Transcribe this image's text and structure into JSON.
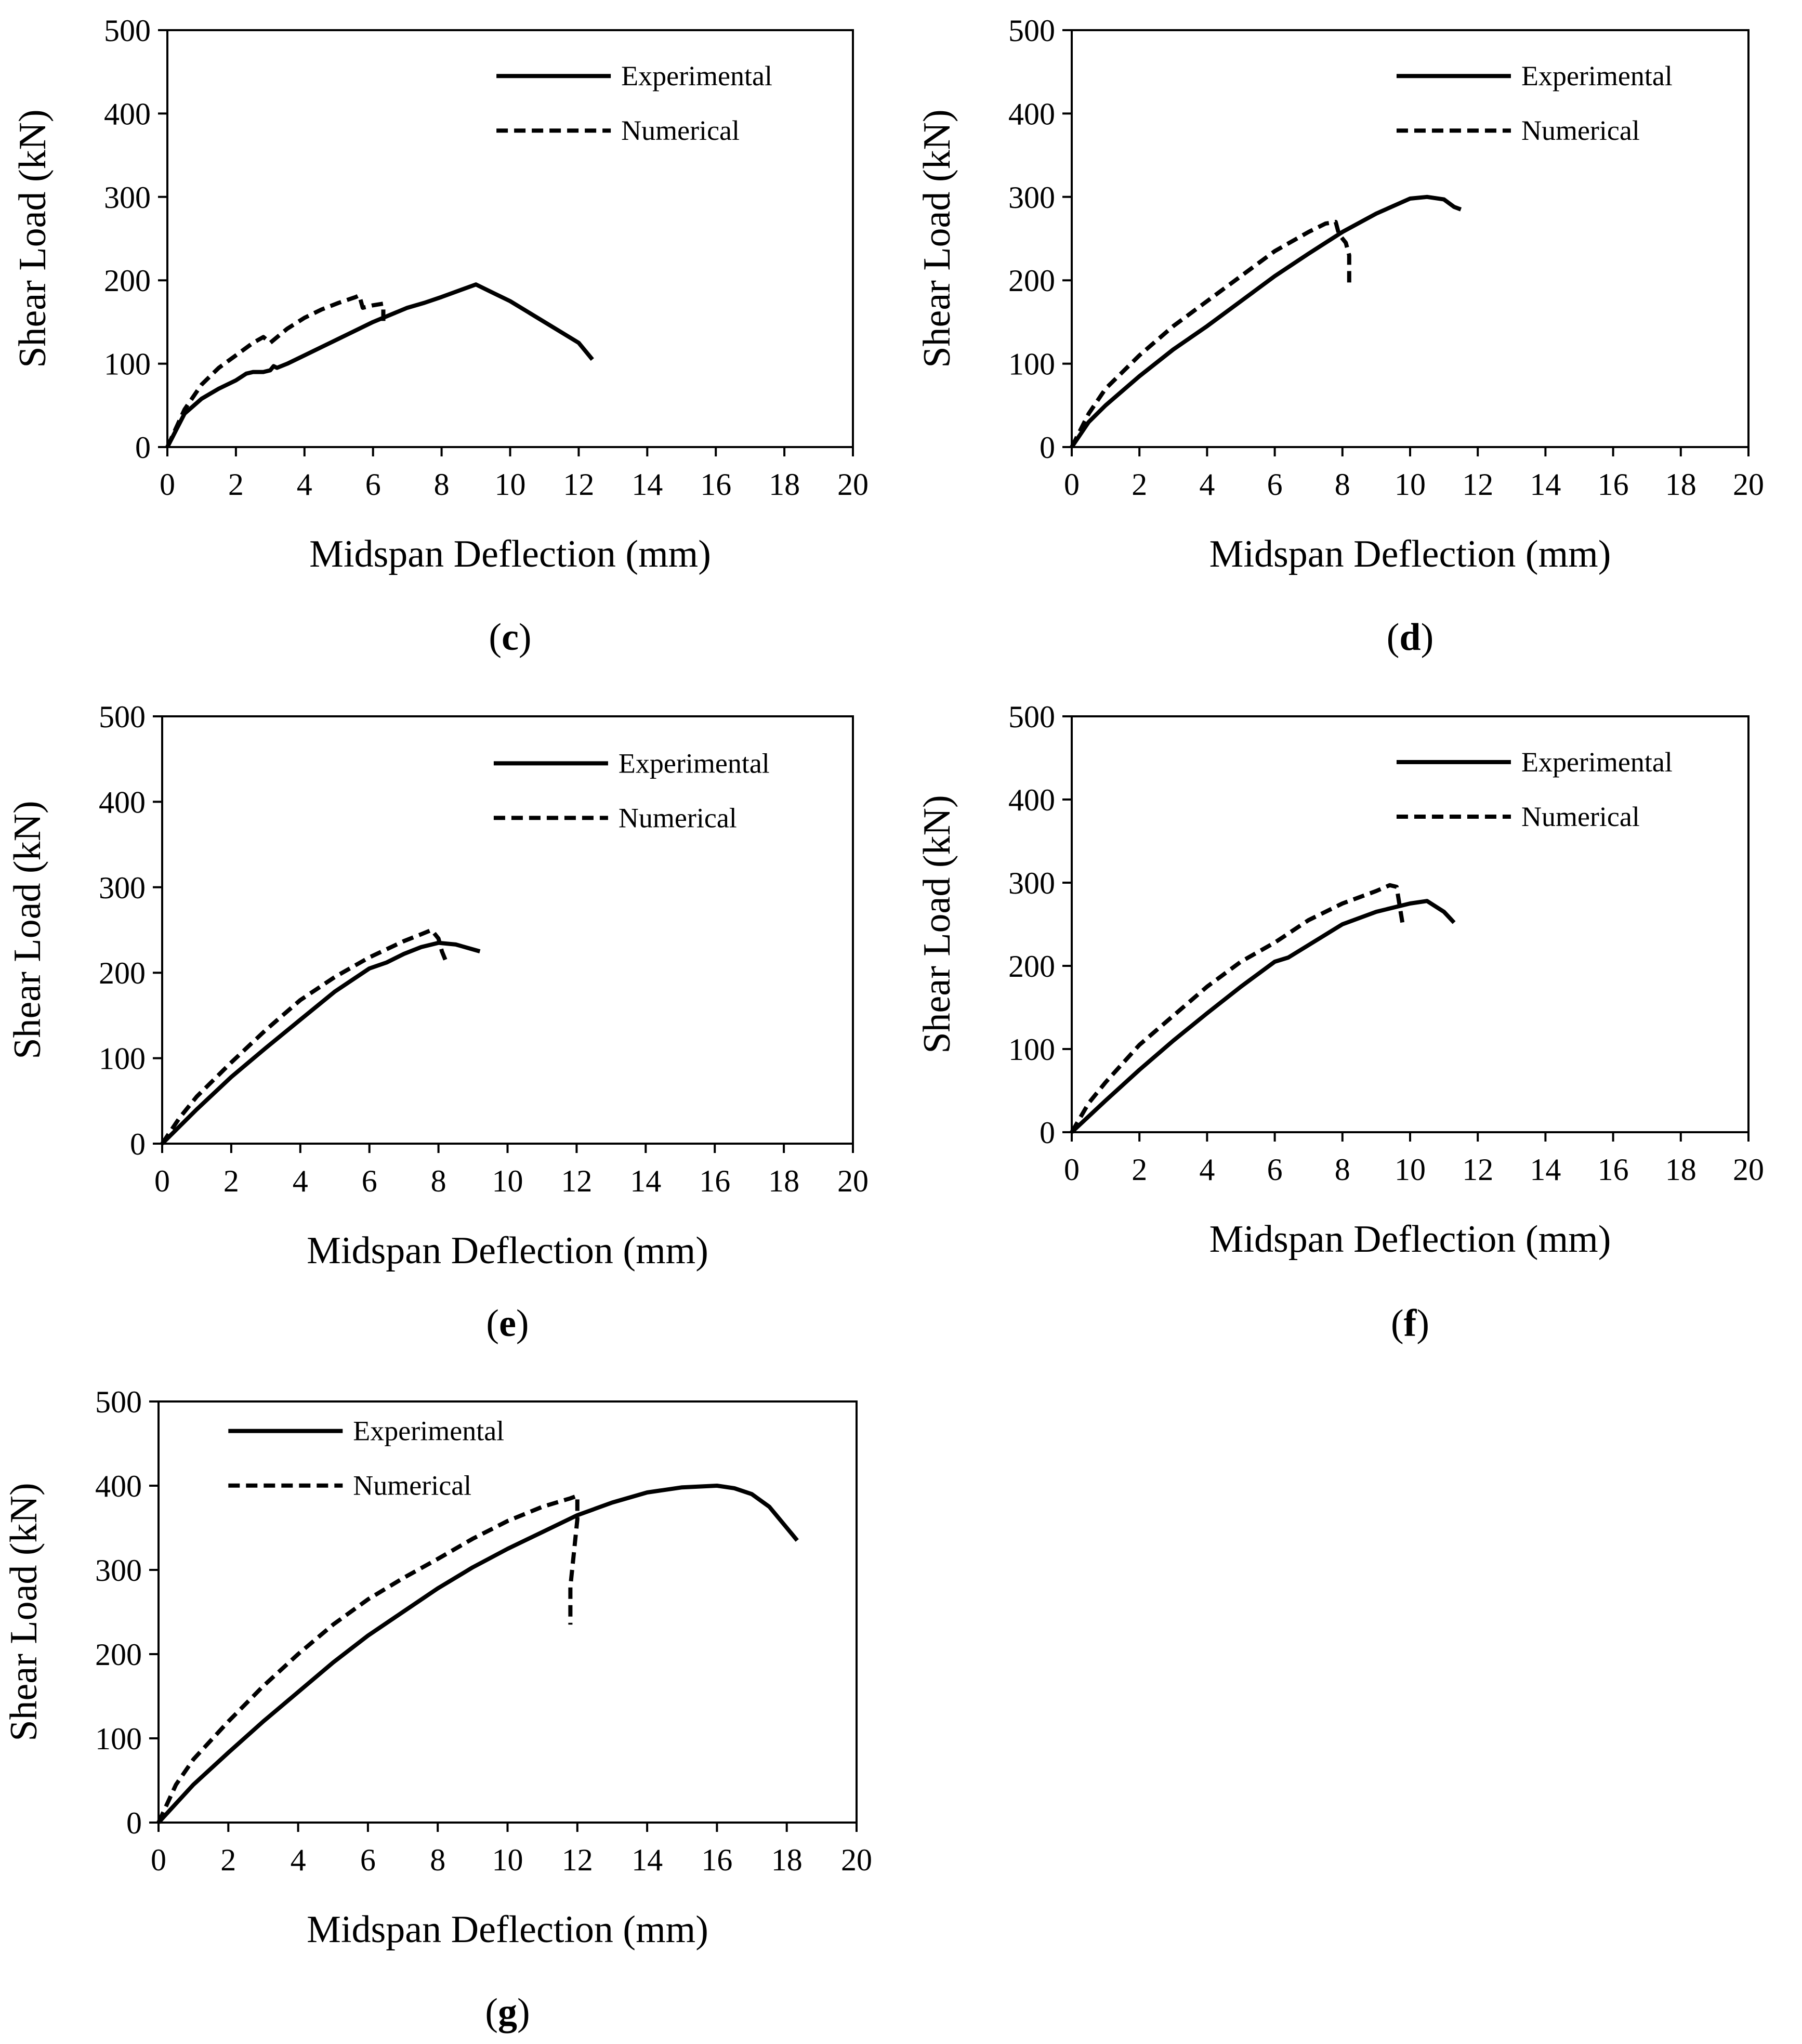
{
  "chart_data": [
    {
      "type": "line",
      "panel": "c",
      "xlabel": "Midspan Deflection (mm)",
      "ylabel": "Shear Load (kN)",
      "xlim": [
        0,
        20
      ],
      "ylim": [
        0,
        500
      ],
      "xticks": [
        0,
        2,
        4,
        6,
        8,
        10,
        12,
        14,
        16,
        18,
        20
      ],
      "yticks": [
        0,
        100,
        200,
        300,
        400,
        500
      ],
      "legend": "top-right",
      "series": [
        {
          "name": "Experimental",
          "style": "solid",
          "x": [
            0,
            0.5,
            1,
            1.5,
            2,
            2.3,
            2.5,
            2.8,
            3.0,
            3.1,
            3.2,
            3.5,
            4,
            5,
            6,
            7,
            7.5,
            8,
            9,
            9.5,
            10,
            11,
            12,
            12.4
          ],
          "y": [
            0,
            40,
            58,
            70,
            80,
            88,
            90,
            90,
            92,
            97,
            95,
            100,
            110,
            130,
            150,
            167,
            173,
            180,
            195,
            185,
            175,
            150,
            125,
            105
          ]
        },
        {
          "name": "Numerical",
          "style": "dashed",
          "x": [
            0,
            0.5,
            1,
            1.5,
            2,
            2.5,
            2.8,
            3.0,
            3.5,
            4,
            4.5,
            5,
            5.5,
            5.6,
            5.7,
            6.0,
            6.3,
            6.3
          ],
          "y": [
            0,
            45,
            75,
            95,
            110,
            125,
            132,
            125,
            142,
            155,
            165,
            173,
            180,
            182,
            167,
            170,
            172,
            148
          ]
        }
      ]
    },
    {
      "type": "line",
      "panel": "d",
      "xlabel": "Midspan Deflection (mm)",
      "ylabel": "Shear Load (kN)",
      "xlim": [
        0,
        20
      ],
      "ylim": [
        0,
        500
      ],
      "xticks": [
        0,
        2,
        4,
        6,
        8,
        10,
        12,
        14,
        16,
        18,
        20
      ],
      "yticks": [
        0,
        100,
        200,
        300,
        400,
        500
      ],
      "legend": "top-right",
      "series": [
        {
          "name": "Experimental",
          "style": "solid",
          "x": [
            0,
            0.5,
            1,
            2,
            3,
            4,
            5,
            6,
            7,
            8,
            9,
            10,
            10.5,
            11,
            11.3,
            11.5
          ],
          "y": [
            0,
            30,
            50,
            85,
            117,
            145,
            175,
            205,
            232,
            258,
            280,
            298,
            300,
            297,
            288,
            285
          ]
        },
        {
          "name": "Numerical",
          "style": "dashed",
          "x": [
            0,
            0.5,
            1,
            2,
            3,
            4,
            5,
            6,
            7,
            7.5,
            7.8,
            7.9,
            8.0,
            8.1,
            8.2,
            8.2
          ],
          "y": [
            0,
            40,
            70,
            110,
            145,
            175,
            205,
            235,
            258,
            268,
            270,
            255,
            250,
            245,
            230,
            195
          ]
        }
      ]
    },
    {
      "type": "line",
      "panel": "e",
      "xlabel": "Midspan Deflection (mm)",
      "ylabel": "Shear Load (kN)",
      "xlim": [
        0,
        20
      ],
      "ylim": [
        0,
        500
      ],
      "xticks": [
        0,
        2,
        4,
        6,
        8,
        10,
        12,
        14,
        16,
        18,
        20
      ],
      "yticks": [
        0,
        100,
        200,
        300,
        400,
        500
      ],
      "legend": "top-right",
      "series": [
        {
          "name": "Experimental",
          "style": "solid",
          "x": [
            0,
            1,
            2,
            3,
            4,
            5,
            6,
            6.5,
            7,
            7.5,
            8,
            8.5,
            9.2
          ],
          "y": [
            0,
            40,
            78,
            112,
            145,
            178,
            205,
            212,
            222,
            230,
            235,
            233,
            225
          ]
        },
        {
          "name": "Numerical",
          "style": "dashed",
          "x": [
            0,
            0.5,
            1,
            2,
            3,
            4,
            5,
            6,
            7,
            7.5,
            7.8,
            8.0,
            8.1,
            8.2
          ],
          "y": [
            0,
            30,
            55,
            95,
            133,
            168,
            195,
            218,
            237,
            245,
            250,
            240,
            225,
            215
          ]
        }
      ]
    },
    {
      "type": "line",
      "panel": "f",
      "xlabel": "Midspan Deflection (mm)",
      "ylabel": "Shear Load (kN)",
      "xlim": [
        0,
        20
      ],
      "ylim": [
        0,
        500
      ],
      "xticks": [
        0,
        2,
        4,
        6,
        8,
        10,
        12,
        14,
        16,
        18,
        20
      ],
      "yticks": [
        0,
        100,
        200,
        300,
        400,
        500
      ],
      "legend": "top-right",
      "series": [
        {
          "name": "Experimental",
          "style": "solid",
          "x": [
            0,
            1,
            2,
            3,
            4,
            5,
            6,
            6.4,
            7,
            8,
            9,
            10,
            10.5,
            11,
            11.3
          ],
          "y": [
            0,
            38,
            75,
            110,
            143,
            175,
            205,
            210,
            225,
            250,
            265,
            275,
            278,
            265,
            252
          ]
        },
        {
          "name": "Numerical",
          "style": "dashed",
          "x": [
            0,
            0.5,
            1,
            2,
            3,
            4,
            5,
            6,
            7,
            8,
            9,
            9.4,
            9.6,
            9.7,
            9.8
          ],
          "y": [
            0,
            35,
            60,
            105,
            140,
            175,
            205,
            228,
            255,
            275,
            290,
            297,
            295,
            270,
            245
          ]
        }
      ]
    },
    {
      "type": "line",
      "panel": "g",
      "xlabel": "Midspan Deflection (mm)",
      "ylabel": "Shear Load (kN)",
      "xlim": [
        0,
        20
      ],
      "ylim": [
        0,
        500
      ],
      "xticks": [
        0,
        2,
        4,
        6,
        8,
        10,
        12,
        14,
        16,
        18,
        20
      ],
      "yticks": [
        0,
        100,
        200,
        300,
        400,
        500
      ],
      "legend": "top-left",
      "series": [
        {
          "name": "Experimental",
          "style": "solid",
          "x": [
            0,
            1,
            2,
            3,
            4,
            5,
            6,
            7,
            8,
            9,
            10,
            11,
            12,
            13,
            14,
            15,
            16,
            16.5,
            17,
            17.5,
            18,
            18.3
          ],
          "y": [
            0,
            45,
            83,
            120,
            155,
            190,
            222,
            250,
            278,
            303,
            325,
            345,
            365,
            380,
            392,
            398,
            400,
            397,
            390,
            375,
            350,
            335
          ]
        },
        {
          "name": "Numerical",
          "style": "dashed",
          "x": [
            0,
            0.5,
            1,
            2,
            3,
            4,
            5,
            6,
            7,
            8,
            9,
            10,
            11,
            11.8,
            12.0,
            12.0,
            11.9,
            11.8,
            11.8
          ],
          "y": [
            0,
            45,
            75,
            120,
            162,
            200,
            235,
            265,
            290,
            313,
            337,
            358,
            375,
            385,
            388,
            360,
            320,
            280,
            235
          ]
        }
      ]
    }
  ]
}
